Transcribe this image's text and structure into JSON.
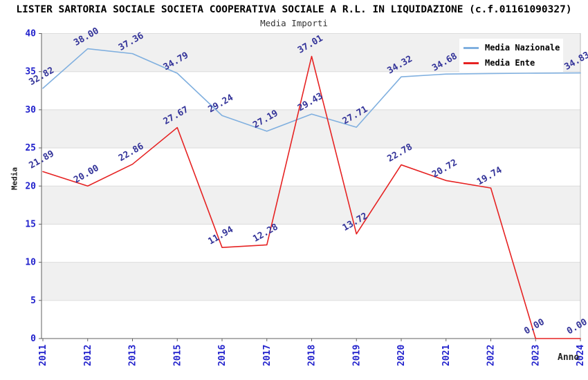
{
  "header": {
    "title": "LISTER SARTORIA SOCIALE SOCIETA COOPERATIVA SOCIALE A R.L. IN LIQUIDAZIONE (c.f.01161090327)",
    "subtitle": "Media Importi"
  },
  "legend": {
    "position": "top-right",
    "items": [
      {
        "label": "Media Nazionale",
        "color": "#7fafdf"
      },
      {
        "label": "Media Ente",
        "color": "#e62222"
      }
    ]
  },
  "chart_data": {
    "type": "line",
    "title": "Media Importi",
    "x": [
      "2011",
      "2012",
      "2013",
      "2015",
      "2016",
      "2017",
      "2018",
      "2019",
      "2020",
      "2021",
      "2022",
      "2023",
      "2024"
    ],
    "xlabel": "Anno",
    "ylabel": "Media",
    "ylim": [
      0,
      40
    ],
    "yticks": [
      0,
      5,
      10,
      15,
      20,
      25,
      30,
      35,
      40
    ],
    "grid": true,
    "legend_position": "top-right",
    "series": [
      {
        "name": "Media Nazionale",
        "color": "#7fafdf",
        "values": [
          32.82,
          38.0,
          37.36,
          34.79,
          29.24,
          27.19,
          29.43,
          27.71,
          34.32,
          34.68,
          34.75,
          34.8,
          34.83
        ],
        "labels": [
          "32.82",
          "38.00",
          "37.36",
          "34.79",
          "29.24",
          "27.19",
          "29.43",
          "27.71",
          "34.32",
          "34.68",
          null,
          null,
          "34.83"
        ]
      },
      {
        "name": "Media Ente",
        "color": "#e62222",
        "values": [
          21.89,
          20.0,
          22.86,
          27.67,
          11.94,
          12.28,
          37.01,
          13.72,
          22.78,
          20.72,
          19.74,
          0.0,
          0.0
        ],
        "labels": [
          "21.89",
          "20.00",
          "22.86",
          "27.67",
          "11.94",
          "12.28",
          "37.01",
          "13.72",
          "22.78",
          "20.72",
          "19.74",
          "0.00",
          "0.00"
        ]
      }
    ],
    "colors": {
      "point_label": "#333399",
      "tick_label": "#2222cc",
      "band_fill": "#f0f0f0",
      "grid_line": "#dcdcdc",
      "axis_line": "#606060",
      "right_border": "#bbbbbb"
    }
  }
}
